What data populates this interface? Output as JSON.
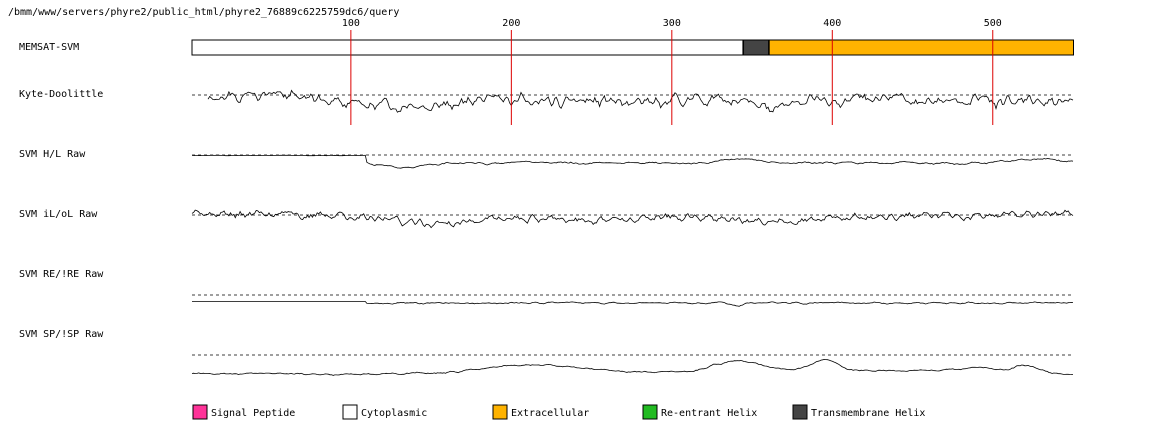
{
  "title": "/bmm/www/servers/phyre2/public_html/phyre2_76889c6225759dc6/query",
  "chart_data": {
    "type": "line",
    "sequence_length": 550,
    "x_ticks": [
      100,
      200,
      300,
      400,
      500
    ],
    "tick_color": "#dd0000",
    "tracks": [
      {
        "label": "MEMSAT-SVM",
        "kind": "topology"
      },
      {
        "label": "Kyte-Doolittle",
        "kind": "profile"
      },
      {
        "label": "SVM H/L Raw",
        "kind": "profile"
      },
      {
        "label": "SVM iL/oL Raw",
        "kind": "profile"
      },
      {
        "label": "SVM RE/!RE Raw",
        "kind": "profile"
      },
      {
        "label": "SVM SP/!SP Raw",
        "kind": "profile"
      }
    ],
    "topology": [
      {
        "start": 1,
        "end": 344,
        "type": "Cytoplasmic"
      },
      {
        "start": 345,
        "end": 360,
        "type": "Transmembrane Helix"
      },
      {
        "start": 361,
        "end": 550,
        "type": "Extracellular"
      }
    ],
    "legend": [
      {
        "label": "Signal Peptide",
        "color": "#ff3399"
      },
      {
        "label": "Cytoplasmic",
        "color": "#ffffff"
      },
      {
        "label": "Extracellular",
        "color": "#ffb300"
      },
      {
        "label": "Re-entrant Helix",
        "color": "#22bb22"
      },
      {
        "label": "Transmembrane Helix",
        "color": "#444444"
      }
    ]
  }
}
